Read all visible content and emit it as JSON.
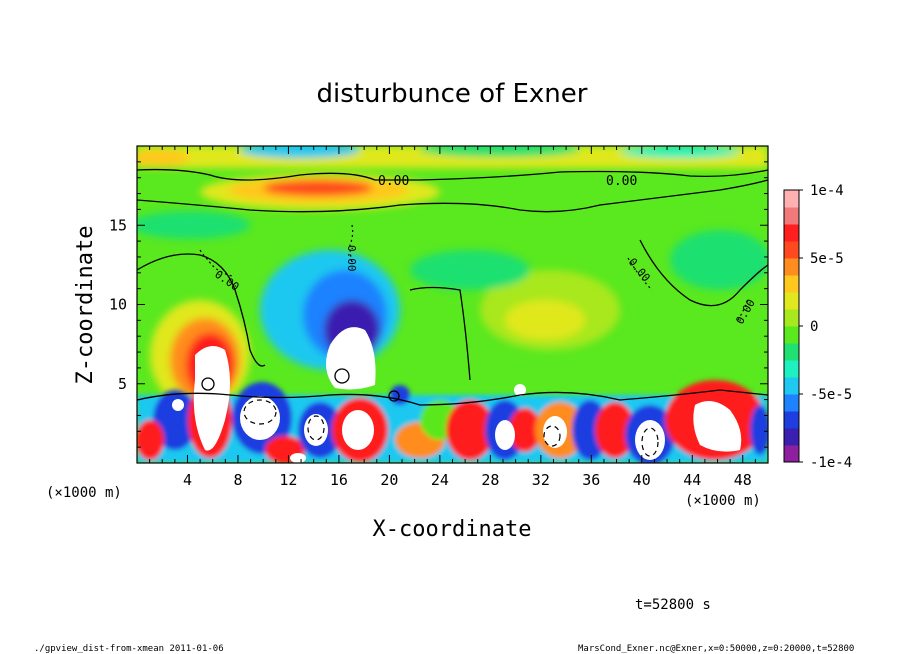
{
  "chart_data": {
    "type": "heatmap",
    "title": "disturbunce of Exner",
    "xlabel": "X-coordinate",
    "ylabel": "Z-coordinate",
    "x_unit": "(×1000 m)",
    "y_unit": "(×1000 m)",
    "xlim": [
      0,
      50
    ],
    "ylim": [
      0,
      20
    ],
    "x_ticks": [
      "4",
      "8",
      "12",
      "16",
      "20",
      "24",
      "28",
      "32",
      "36",
      "40",
      "44",
      "48"
    ],
    "y_ticks": [
      "5",
      "10",
      "15"
    ],
    "colorbar": {
      "range": [
        -0.0001,
        0.0001
      ],
      "tick_labels": [
        "1e-4",
        "5e-5",
        "0",
        "-5e-5",
        "-1e-4"
      ],
      "colors": [
        "#8e1f9e",
        "#3a1fb0",
        "#1f3ee0",
        "#1f82ff",
        "#1fc8f0",
        "#1ff0c0",
        "#1fe070",
        "#5ae81f",
        "#a8e81f",
        "#e0e81f",
        "#ffc81f",
        "#ff8c1f",
        "#ff4a1f",
        "#ff1f1f",
        "#f07a7a",
        "#ffb0b0"
      ]
    },
    "contour_labels": [
      "0.00",
      "0.00",
      "0.00",
      "0.00",
      "0.00",
      "0.00"
    ],
    "annotation_time": "t=52800 s",
    "footer_left": "./gpview_dist-from-xmean  2011-01-06",
    "footer_right": "MarsCond_Exner.nc@Exner,x=0:50000,z=0:20000,t=52800"
  }
}
